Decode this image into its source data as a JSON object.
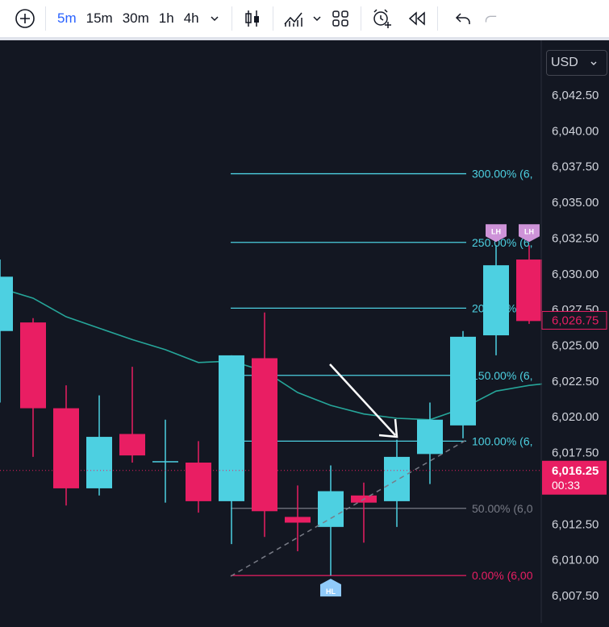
{
  "toolbar": {
    "timeframes": [
      "5m",
      "15m",
      "30m",
      "1h",
      "4h"
    ],
    "active_timeframe": "5m"
  },
  "currency": {
    "label": "USD"
  },
  "price_labels": {
    "last": "6,026.75",
    "current": "6,016.25",
    "countdown": "00:33"
  },
  "colors": {
    "up": "#4dd0e1",
    "down": "#e91e63",
    "ma": "#26a69a",
    "fib": "#4dd0e1",
    "fib_zero": "#e91e63",
    "marker_lh": "#ce93d8",
    "marker_hl": "#90caf9",
    "background": "#131722",
    "axis_text": "#d1d4dc"
  },
  "chart_data": {
    "type": "candlestick",
    "y_axis": {
      "ylim": [
        6006.25,
        6044.5
      ],
      "ticks": [
        "6,042.50",
        "6,040.00",
        "6,037.50",
        "6,035.00",
        "6,032.50",
        "6,030.00",
        "6,027.50",
        "6,025.00",
        "6,022.50",
        "6,020.00",
        "6,017.50",
        "6,015.00",
        "6,012.50",
        "6,010.00",
        "6,007.50"
      ],
      "tick_values": [
        6042.5,
        6040,
        6037.5,
        6035,
        6032.5,
        6030,
        6027.5,
        6025,
        6022.5,
        6020,
        6017.5,
        6015,
        6012.5,
        6010,
        6007.5
      ]
    },
    "candles": [
      {
        "o": 6026.0,
        "h": 6031.0,
        "l": 6021.0,
        "c": 6029.8
      },
      {
        "o": 6026.6,
        "h": 6026.9,
        "l": 6017.2,
        "c": 6020.6
      },
      {
        "o": 6020.6,
        "h": 6022.2,
        "l": 6013.8,
        "c": 6015.0
      },
      {
        "o": 6015.0,
        "h": 6021.5,
        "l": 6014.5,
        "c": 6018.6
      },
      {
        "o": 6018.8,
        "h": 6023.5,
        "l": 6016.8,
        "c": 6017.3
      },
      {
        "o": 6016.9,
        "h": 6019.8,
        "l": 6014.0,
        "c": 6016.9
      },
      {
        "o": 6016.8,
        "h": 6018.3,
        "l": 6013.3,
        "c": 6014.1
      },
      {
        "o": 6014.1,
        "h": 6024.3,
        "l": 6011.1,
        "c": 6024.3
      },
      {
        "o": 6024.1,
        "h": 6027.3,
        "l": 6011.6,
        "c": 6013.4
      },
      {
        "o": 6013.0,
        "h": 6015.2,
        "l": 6010.6,
        "c": 6012.6
      },
      {
        "o": 6012.3,
        "h": 6016.6,
        "l": 6008.9,
        "c": 6014.8
      },
      {
        "o": 6014.5,
        "h": 6015.4,
        "l": 6011.2,
        "c": 6014.0
      },
      {
        "o": 6014.1,
        "h": 6018.4,
        "l": 6012.3,
        "c": 6017.2
      },
      {
        "o": 6017.4,
        "h": 6021.0,
        "l": 6015.3,
        "c": 6019.8
      },
      {
        "o": 6019.4,
        "h": 6026.0,
        "l": 6018.5,
        "c": 6025.6
      },
      {
        "o": 6025.7,
        "h": 6032.0,
        "l": 6024.3,
        "c": 6030.6
      },
      {
        "o": 6031.0,
        "h": 6032.0,
        "l": 6026.5,
        "c": 6026.7
      }
    ],
    "moving_average": [
      6029.0,
      6028.3,
      6027.0,
      6026.2,
      6025.4,
      6024.7,
      6023.8,
      6023.9,
      6023.2,
      6021.7,
      6020.8,
      6020.2,
      6019.9,
      6019.8,
      6020.6,
      6021.8,
      6022.2
    ],
    "fib_levels": [
      {
        "label": "300.00% (6,",
        "value": 6037.0
      },
      {
        "label": "250.00% (6,",
        "value": 6032.2
      },
      {
        "label": "200.00% (6,",
        "value": 6027.6
      },
      {
        "label": "150.00% (6,",
        "value": 6022.9
      },
      {
        "label": "100.00% (6,",
        "value": 6018.3
      },
      {
        "label": "50.00% (6,0",
        "value": 6013.6
      },
      {
        "label": "0.00% (6,00",
        "value": 6008.9
      }
    ],
    "markers": [
      {
        "label": "LH",
        "candle": 15,
        "position": "above"
      },
      {
        "label": "LH",
        "candle": 16,
        "position": "above"
      },
      {
        "label": "HL",
        "candle": 10,
        "position": "below"
      }
    ],
    "current_price": 6016.25,
    "last_price": 6026.75
  }
}
